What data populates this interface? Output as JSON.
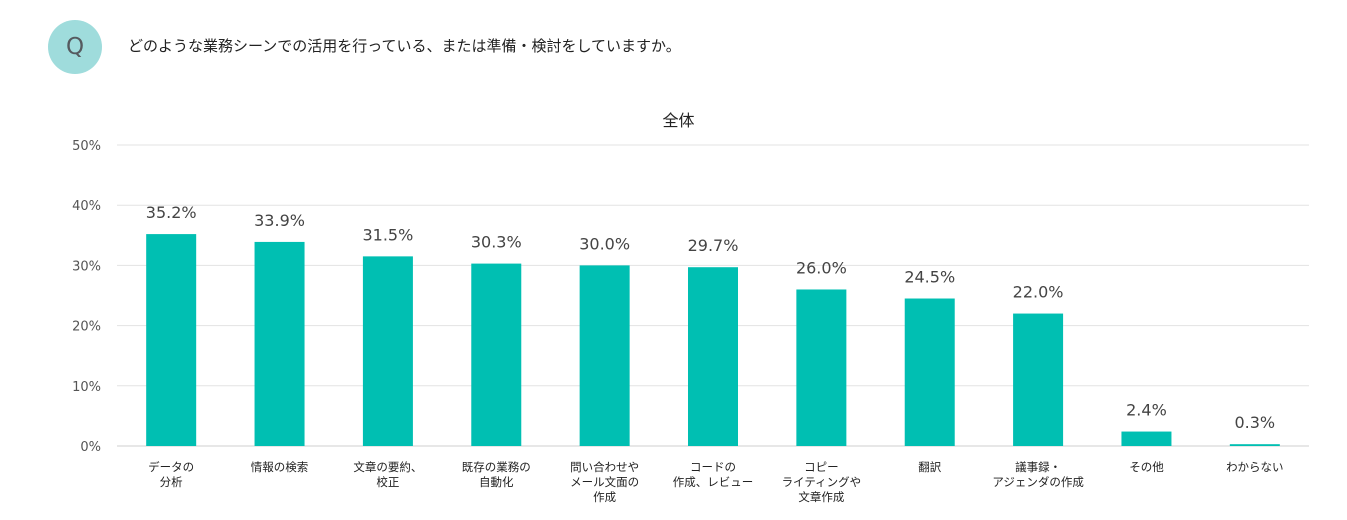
{
  "question": {
    "badge": "Q",
    "text": "どのような業務シーンでの活用を行っている、または準備・検討をしていますか。"
  },
  "chart_data": {
    "type": "bar",
    "title": "全体",
    "xlabel": "",
    "ylabel": "",
    "ylim": [
      0,
      50
    ],
    "yticks": [
      0,
      10,
      20,
      30,
      40,
      50
    ],
    "ytick_labels": [
      "0%",
      "10%",
      "20%",
      "30%",
      "40%",
      "50%"
    ],
    "grid": true,
    "bar_color": "#00bfb2",
    "categories": [
      [
        "データの",
        "分析"
      ],
      [
        "情報の検索"
      ],
      [
        "文章の要約、",
        "校正"
      ],
      [
        "既存の業務の",
        "自動化"
      ],
      [
        "問い合わせや",
        "メール文面の",
        "作成"
      ],
      [
        "コードの",
        "作成、レビュー"
      ],
      [
        "コピー",
        "ライティングや",
        "文章作成"
      ],
      [
        "翻訳"
      ],
      [
        "議事録・",
        "アジェンダの作成"
      ],
      [
        "その他"
      ],
      [
        "わからない"
      ]
    ],
    "values": [
      35.2,
      33.9,
      31.5,
      30.3,
      30.0,
      29.7,
      26.0,
      24.5,
      22.0,
      2.4,
      0.3
    ],
    "value_labels": [
      "35.2%",
      "33.9%",
      "31.5%",
      "30.3%",
      "30.0%",
      "29.7%",
      "26.0%",
      "24.5%",
      "22.0%",
      "2.4%",
      "0.3%"
    ]
  }
}
